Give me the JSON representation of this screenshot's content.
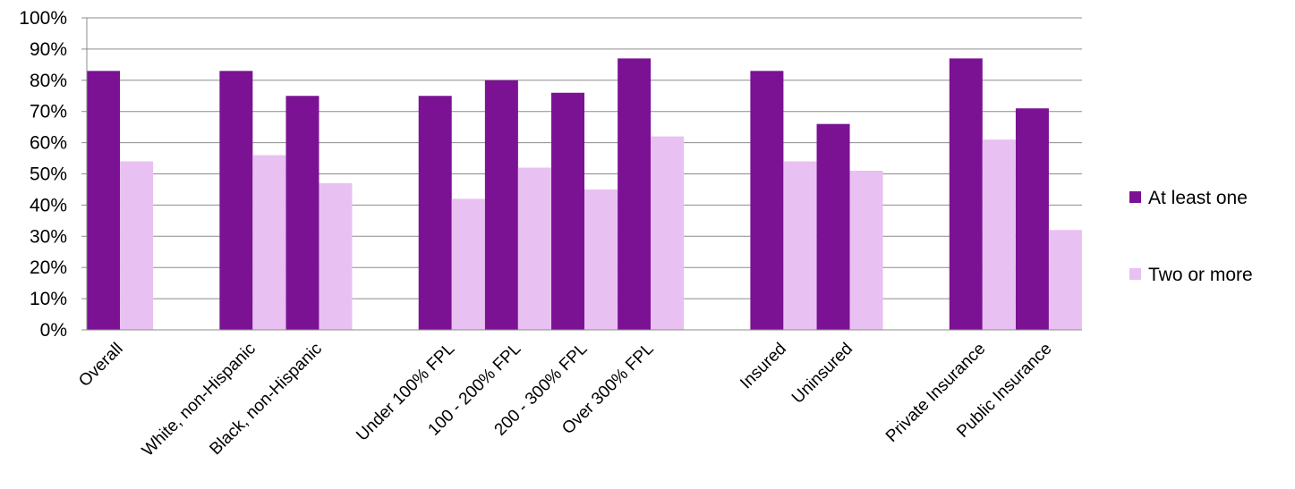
{
  "chart_data": {
    "type": "bar",
    "title": "",
    "xlabel": "",
    "ylabel": "",
    "ylim": [
      0,
      100
    ],
    "ytick_values": [
      0,
      10,
      20,
      30,
      40,
      50,
      60,
      70,
      80,
      90,
      100
    ],
    "ytick_labels": [
      "0%",
      "10%",
      "20%",
      "30%",
      "40%",
      "50%",
      "60%",
      "70%",
      "80%",
      "90%",
      "100%"
    ],
    "grid": true,
    "legend_position": "right",
    "categories": [
      "Overall",
      "",
      "White, non-Hispanic",
      "Black, non-Hispanic",
      "",
      "Under 100% FPL",
      "100 - 200% FPL",
      "200 - 300% FPL",
      "Over 300% FPL",
      "",
      "Insured",
      "Uninsured",
      "",
      "Private Insurance",
      "Public Insurance"
    ],
    "series": [
      {
        "name": "At least one",
        "color": "#7B1294",
        "values": [
          83,
          null,
          83,
          75,
          null,
          75,
          80,
          76,
          87,
          null,
          83,
          66,
          null,
          87,
          71
        ]
      },
      {
        "name": "Two or more",
        "color": "#E9C0F2",
        "values": [
          54,
          null,
          56,
          47,
          null,
          42,
          52,
          45,
          62,
          null,
          54,
          51,
          null,
          61,
          32
        ]
      }
    ]
  }
}
